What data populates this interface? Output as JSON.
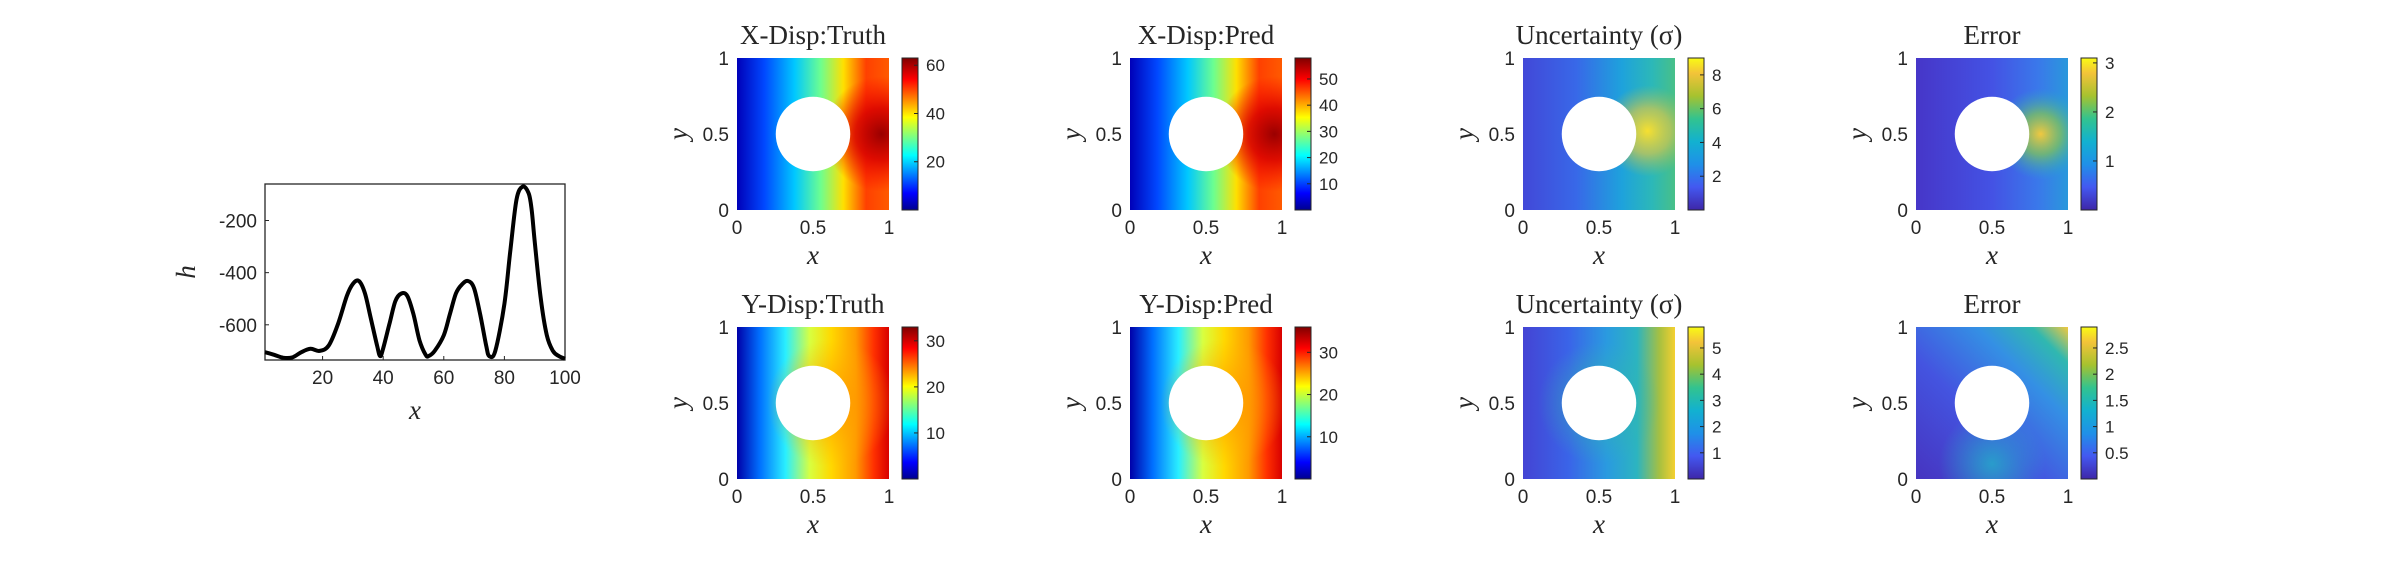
{
  "colors": {
    "axis": "#262626",
    "line": "#000000",
    "hole": "#ffffff"
  },
  "chart_data": [
    {
      "id": "h-profile",
      "type": "line",
      "xlabel": "x",
      "ylabel": "h",
      "xlim": [
        1,
        100
      ],
      "ylim": [
        -735,
        -60
      ],
      "xticks": [
        20,
        40,
        60,
        80,
        100
      ],
      "yticks": [
        -600,
        -400,
        -200
      ],
      "grid": false,
      "series": [
        {
          "x": [
            1,
            4,
            7,
            10,
            13,
            16,
            19,
            22,
            25,
            28,
            30,
            32,
            34,
            36,
            38,
            39,
            40,
            42,
            44,
            46,
            48,
            50,
            52,
            54,
            55,
            57,
            60,
            62,
            64,
            66,
            68,
            70,
            72,
            74,
            75,
            77,
            80,
            82,
            84,
            86,
            88,
            89,
            90,
            92,
            94,
            96,
            98,
            100
          ],
          "y": [
            -705,
            -715,
            -726,
            -725,
            -705,
            -692,
            -700,
            -680,
            -600,
            -490,
            -443,
            -432,
            -480,
            -580,
            -680,
            -720,
            -690,
            -600,
            -510,
            -480,
            -490,
            -560,
            -660,
            -715,
            -720,
            -700,
            -640,
            -560,
            -480,
            -445,
            -432,
            -460,
            -560,
            -680,
            -720,
            -700,
            -520,
            -310,
            -120,
            -70,
            -95,
            -160,
            -280,
            -500,
            -640,
            -700,
            -720,
            -730
          ]
        }
      ]
    },
    {
      "id": "x-disp-truth",
      "type": "heatmap",
      "title": "X-Disp:Truth",
      "xlabel": "x",
      "ylabel": "y",
      "xlim": [
        0,
        1
      ],
      "ylim": [
        0,
        1
      ],
      "xticks": [
        "0",
        "0.5",
        "1"
      ],
      "yticks": [
        "0",
        "0.5",
        "1"
      ],
      "colormap": "jet",
      "clim": [
        0,
        63
      ],
      "colorbar_ticks": [
        20,
        40,
        60
      ]
    },
    {
      "id": "x-disp-pred",
      "type": "heatmap",
      "title": "X-Disp:Pred",
      "xlabel": "x",
      "ylabel": "y",
      "xlim": [
        0,
        1
      ],
      "ylim": [
        0,
        1
      ],
      "xticks": [
        "0",
        "0.5",
        "1"
      ],
      "yticks": [
        "0",
        "0.5",
        "1"
      ],
      "colormap": "jet",
      "clim": [
        0,
        58
      ],
      "colorbar_ticks": [
        10,
        20,
        30,
        40,
        50
      ]
    },
    {
      "id": "x-uncertainty",
      "type": "heatmap",
      "title": "Uncertainty (σ)",
      "xlabel": "x",
      "ylabel": "y",
      "xlim": [
        0,
        1
      ],
      "ylim": [
        0,
        1
      ],
      "xticks": [
        "0",
        "0.5",
        "1"
      ],
      "yticks": [
        "0",
        "0.5",
        "1"
      ],
      "colormap": "parula",
      "clim": [
        0,
        9
      ],
      "colorbar_ticks": [
        2,
        4,
        6,
        8
      ]
    },
    {
      "id": "x-error",
      "type": "heatmap",
      "title": "Error",
      "xlabel": "x",
      "ylabel": "y",
      "xlim": [
        0,
        1
      ],
      "ylim": [
        0,
        1
      ],
      "xticks": [
        "0",
        "0.5",
        "1"
      ],
      "yticks": [
        "0",
        "0.5",
        "1"
      ],
      "colormap": "parula",
      "clim": [
        0,
        3.1
      ],
      "colorbar_ticks": [
        1,
        2,
        3
      ]
    },
    {
      "id": "y-disp-truth",
      "type": "heatmap",
      "title": "Y-Disp:Truth",
      "xlabel": "x",
      "ylabel": "y",
      "xlim": [
        0,
        1
      ],
      "ylim": [
        0,
        1
      ],
      "xticks": [
        "0",
        "0.5",
        "1"
      ],
      "yticks": [
        "0",
        "0.5",
        "1"
      ],
      "colormap": "jet",
      "clim": [
        0,
        33
      ],
      "colorbar_ticks": [
        10,
        20,
        30
      ]
    },
    {
      "id": "y-disp-pred",
      "type": "heatmap",
      "title": "Y-Disp:Pred",
      "xlabel": "x",
      "ylabel": "y",
      "xlim": [
        0,
        1
      ],
      "ylim": [
        0,
        1
      ],
      "xticks": [
        "0",
        "0.5",
        "1"
      ],
      "yticks": [
        "0",
        "0.5",
        "1"
      ],
      "colormap": "jet",
      "clim": [
        0,
        36
      ],
      "colorbar_ticks": [
        10,
        20,
        30
      ]
    },
    {
      "id": "y-uncertainty",
      "type": "heatmap",
      "title": "Uncertainty (σ)",
      "xlabel": "x",
      "ylabel": "y",
      "xlim": [
        0,
        1
      ],
      "ylim": [
        0,
        1
      ],
      "xticks": [
        "0",
        "0.5",
        "1"
      ],
      "yticks": [
        "0",
        "0.5",
        "1"
      ],
      "colormap": "parula",
      "clim": [
        0,
        5.8
      ],
      "colorbar_ticks": [
        1,
        2,
        3,
        4,
        5
      ]
    },
    {
      "id": "y-error",
      "type": "heatmap",
      "title": "Error",
      "xlabel": "x",
      "ylabel": "y",
      "xlim": [
        0,
        1
      ],
      "ylim": [
        0,
        1
      ],
      "xticks": [
        "0",
        "0.5",
        "1"
      ],
      "yticks": [
        "0",
        "0.5",
        "1"
      ],
      "colormap": "parula",
      "clim": [
        0,
        2.9
      ],
      "colorbar_ticks": [
        "0.5",
        "1",
        "1.5",
        "2",
        "2.5"
      ]
    }
  ]
}
